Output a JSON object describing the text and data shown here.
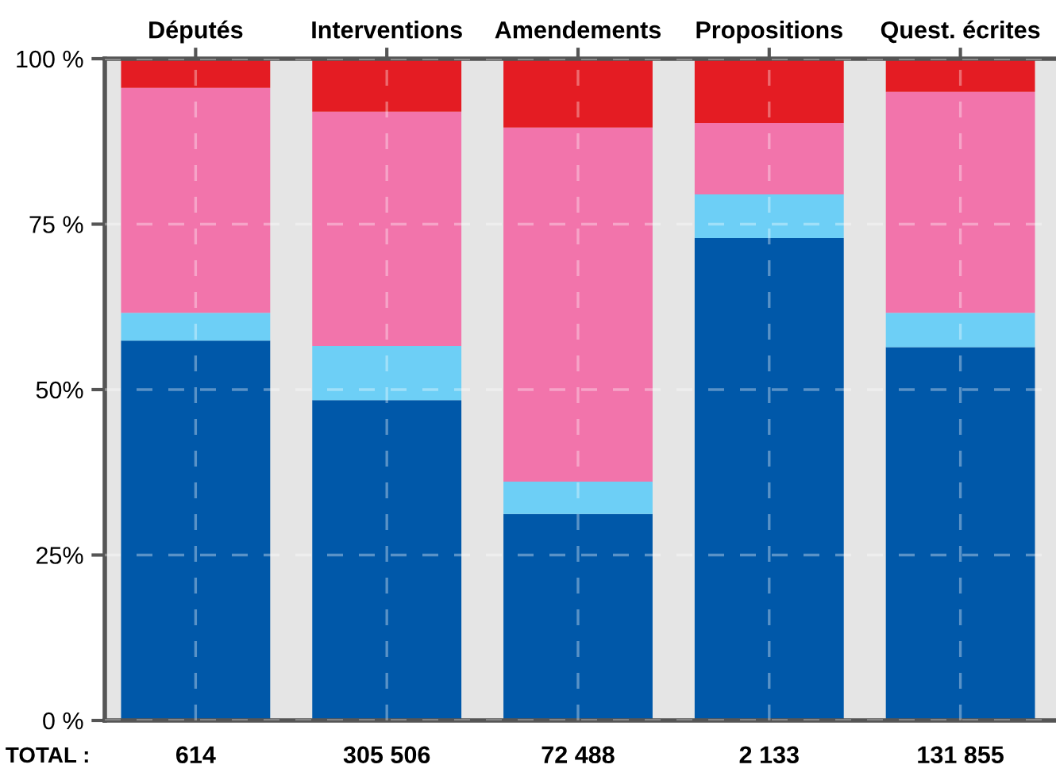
{
  "chart_data": {
    "type": "bar",
    "stacked": true,
    "categories": [
      "Députés",
      "Interventions",
      "Amendements",
      "Propositions",
      "Quest. écrites"
    ],
    "series": [
      {
        "color": "#0058a9",
        "values": [
          57.4,
          48.4,
          31.2,
          72.9,
          56.4
        ]
      },
      {
        "color": "#6dcff6",
        "values": [
          4.2,
          8.2,
          4.9,
          6.6,
          5.2
        ]
      },
      {
        "color": "#f274ab",
        "values": [
          34.0,
          35.4,
          53.5,
          10.8,
          33.4
        ]
      },
      {
        "color": "#e41c23",
        "values": [
          4.4,
          8.0,
          10.4,
          9.7,
          5.0
        ]
      }
    ],
    "ylim": [
      0,
      100
    ],
    "yticks": [
      {
        "value": 0,
        "label": "0 %"
      },
      {
        "value": 25,
        "label": "25%"
      },
      {
        "value": 50,
        "label": "50%"
      },
      {
        "value": 75,
        "label": "75 %"
      },
      {
        "value": 100,
        "label": "100 %"
      }
    ],
    "grid": true,
    "annotations": [
      "TOTAL :",
      "614",
      "305 506",
      "72 488",
      "2 133",
      "131 855"
    ]
  }
}
